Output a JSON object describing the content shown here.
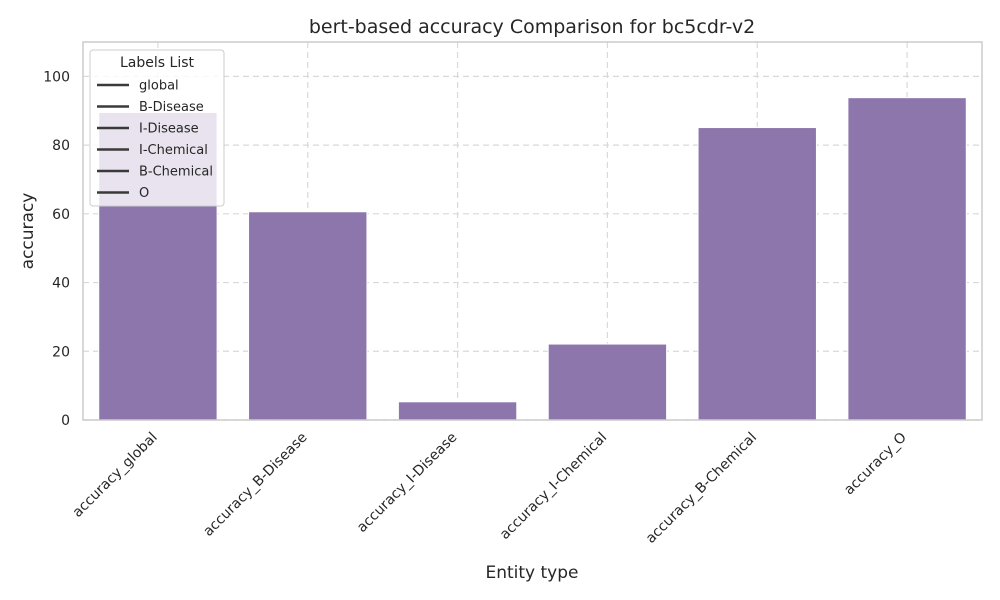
{
  "chart_data": {
    "type": "bar",
    "title": "bert-based  accuracy Comparison for bc5cdr-v2",
    "xlabel": "Entity type",
    "ylabel": "accuracy",
    "categories": [
      "accuracy_global",
      "accuracy_B-Disease",
      "accuracy_I-Disease",
      "accuracy_I-Chemical",
      "accuracy_B-Chemical",
      "accuracy_O"
    ],
    "values": [
      89.5,
      60.6,
      5.3,
      22.1,
      85.1,
      93.8
    ],
    "ylim": [
      0,
      110
    ],
    "yticks": [
      0,
      20,
      40,
      60,
      80,
      100
    ],
    "grid": true,
    "bar_color": "#8c76ab",
    "legend": {
      "title": "Labels List",
      "placement": "top-left",
      "entries": [
        "global",
        "B-Disease",
        "I-Disease",
        "I-Chemical",
        "B-Chemical",
        "O"
      ]
    }
  }
}
